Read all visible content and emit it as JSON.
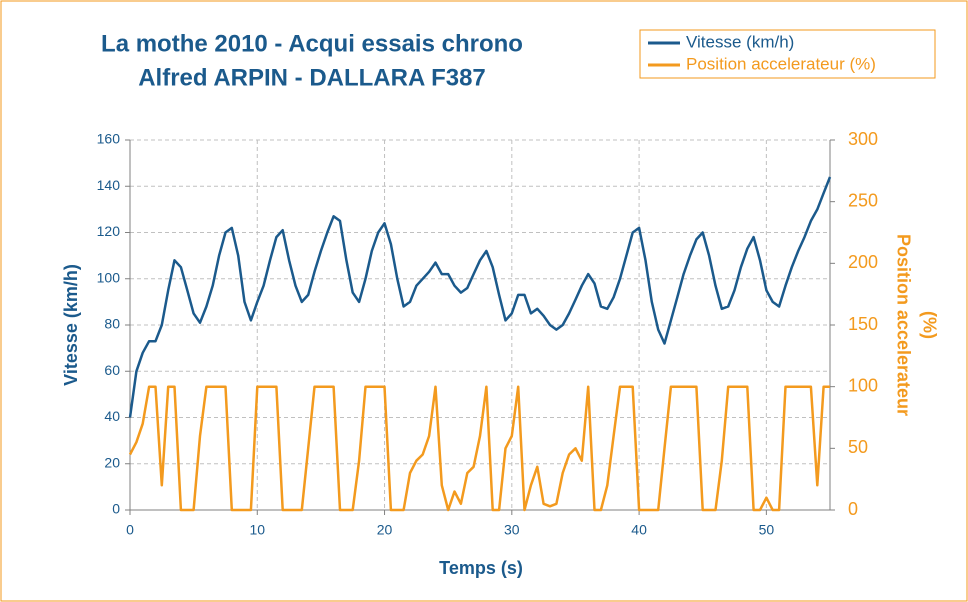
{
  "chart_data": {
    "type": "line",
    "title": [
      "La mothe 2010 - Acqui essais chrono",
      "Alfred ARPIN - DALLARA F387"
    ],
    "xlabel": "Temps (s)",
    "ylabel": "Vitesse (km/h)",
    "y2label": [
      "Position accelerateur",
      "(%)"
    ],
    "x": [
      0,
      0.5,
      1,
      1.5,
      2,
      2.5,
      3,
      3.5,
      4,
      4.5,
      5,
      5.5,
      6,
      6.5,
      7,
      7.5,
      8,
      8.5,
      9,
      9.5,
      10,
      10.5,
      11,
      11.5,
      12,
      12.5,
      13,
      13.5,
      14,
      14.5,
      15,
      15.5,
      16,
      16.5,
      17,
      17.5,
      18,
      18.5,
      19,
      19.5,
      20,
      20.5,
      21,
      21.5,
      22,
      22.5,
      23,
      23.5,
      24,
      24.5,
      25,
      25.5,
      26,
      26.5,
      27,
      27.5,
      28,
      28.5,
      29,
      29.5,
      30,
      30.5,
      31,
      31.5,
      32,
      32.5,
      33,
      33.5,
      34,
      34.5,
      35,
      35.5,
      36,
      36.5,
      37,
      37.5,
      38,
      38.5,
      39,
      39.5,
      40,
      40.5,
      41,
      41.5,
      42,
      42.5,
      43,
      43.5,
      44,
      44.5,
      45,
      45.5,
      46,
      46.5,
      47,
      47.5,
      48,
      48.5,
      49,
      49.5,
      50,
      50.5,
      51,
      51.5,
      52,
      52.5,
      53,
      53.5,
      54,
      54.5,
      55
    ],
    "series": [
      {
        "name": "Vitesse (km/h)",
        "color": "#1b5a8c",
        "axis": "y",
        "values": [
          40,
          60,
          68,
          73,
          73,
          80,
          95,
          108,
          105,
          95,
          85,
          81,
          88,
          97,
          110,
          120,
          122,
          110,
          90,
          82,
          90,
          97,
          108,
          118,
          121,
          108,
          97,
          90,
          93,
          103,
          112,
          120,
          127,
          125,
          108,
          94,
          90,
          100,
          112,
          120,
          124,
          115,
          100,
          88,
          90,
          97,
          100,
          103,
          107,
          102,
          102,
          97,
          94,
          96,
          102,
          108,
          112,
          105,
          93,
          82,
          85,
          93,
          93,
          85,
          87,
          84,
          80,
          78,
          80,
          85,
          91,
          97,
          102,
          98,
          88,
          87,
          92,
          100,
          110,
          120,
          122,
          108,
          90,
          78,
          72,
          82,
          92,
          102,
          110,
          117,
          120,
          110,
          97,
          87,
          88,
          95,
          105,
          113,
          118,
          108,
          95,
          90,
          88,
          97,
          105,
          112,
          118,
          125,
          130,
          137,
          144
        ]
      },
      {
        "name": "Position accelerateur (%)",
        "color": "#f39a1e",
        "axis": "y2",
        "values": [
          45,
          55,
          70,
          100,
          100,
          20,
          100,
          100,
          0,
          0,
          0,
          60,
          100,
          100,
          100,
          100,
          0,
          0,
          0,
          0,
          100,
          100,
          100,
          100,
          0,
          0,
          0,
          0,
          50,
          100,
          100,
          100,
          100,
          0,
          0,
          0,
          40,
          100,
          100,
          100,
          100,
          0,
          0,
          0,
          30,
          40,
          45,
          60,
          100,
          20,
          0,
          15,
          5,
          30,
          35,
          60,
          100,
          0,
          0,
          50,
          60,
          100,
          0,
          20,
          35,
          5,
          3,
          5,
          30,
          45,
          50,
          40,
          100,
          0,
          0,
          20,
          60,
          100,
          100,
          100,
          0,
          0,
          0,
          0,
          50,
          100,
          100,
          100,
          100,
          100,
          0,
          0,
          0,
          40,
          100,
          100,
          100,
          100,
          0,
          0,
          10,
          0,
          0,
          100,
          100,
          100,
          100,
          100,
          20,
          100,
          100
        ]
      }
    ],
    "xlim": [
      0,
      55
    ],
    "xticks": [
      0,
      10,
      20,
      30,
      40,
      50
    ],
    "ylim": [
      0,
      160
    ],
    "yticks": [
      0,
      20,
      40,
      60,
      80,
      100,
      120,
      140,
      160
    ],
    "y2lim": [
      0,
      300
    ],
    "y2ticks": [
      0,
      50,
      100,
      150,
      200,
      250,
      300
    ],
    "grid": true,
    "legend": "upper right"
  }
}
